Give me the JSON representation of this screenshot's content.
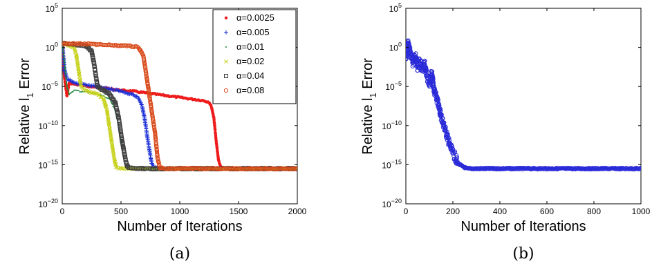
{
  "chart_data": [
    {
      "type": "scatter",
      "caption": "(a)",
      "xlabel": "Number of Iterations",
      "ylabel_base": "Relative l",
      "ylabel_sub": "1",
      "ylabel_tail": "Error",
      "xlim": [
        0,
        2000
      ],
      "ylim_log10": [
        -20,
        5
      ],
      "yscale": "log",
      "x_ticks": [
        "0",
        "500",
        "1000",
        "1500",
        "2000"
      ],
      "x_tick_values": [
        0,
        500,
        1000,
        1500,
        2000
      ],
      "y_ticks": [
        {
          "base": "10",
          "exp": "5",
          "value": 5
        },
        {
          "base": "10",
          "exp": "0",
          "value": 0
        },
        {
          "base": "10",
          "exp": "−5",
          "value": -5
        },
        {
          "base": "10",
          "exp": "−10",
          "value": -10
        },
        {
          "base": "10",
          "exp": "−15",
          "value": -15
        },
        {
          "base": "10",
          "exp": "−20",
          "value": -20
        }
      ],
      "legend_position": "top-right",
      "grid": false,
      "series": [
        {
          "name": "α=0.0025",
          "color": "#ee1c1c",
          "marker": "dot",
          "points_log10": [
            [
              0,
              0.5
            ],
            [
              20,
              -4
            ],
            [
              40,
              -6.2
            ],
            [
              60,
              -4.5
            ],
            [
              100,
              -4.7
            ],
            [
              200,
              -4.9
            ],
            [
              300,
              -5.1
            ],
            [
              400,
              -5.3
            ],
            [
              500,
              -5.5
            ],
            [
              600,
              -5.6
            ],
            [
              700,
              -5.8
            ],
            [
              800,
              -6.0
            ],
            [
              900,
              -6.2
            ],
            [
              1000,
              -6.4
            ],
            [
              1100,
              -6.6
            ],
            [
              1200,
              -6.8
            ],
            [
              1250,
              -7.0
            ],
            [
              1270,
              -7.6
            ],
            [
              1290,
              -9
            ],
            [
              1310,
              -12
            ],
            [
              1330,
              -14.5
            ],
            [
              1350,
              -15.3
            ],
            [
              1400,
              -15.5
            ],
            [
              1600,
              -15.5
            ],
            [
              1800,
              -15.5
            ],
            [
              2000,
              -15.5
            ]
          ]
        },
        {
          "name": "α=0.005",
          "color": "#1a2ed6",
          "marker": "plus",
          "points_log10": [
            [
              0,
              0.5
            ],
            [
              20,
              -3
            ],
            [
              40,
              -4
            ],
            [
              100,
              -4.5
            ],
            [
              200,
              -4.8
            ],
            [
              300,
              -5.0
            ],
            [
              400,
              -5.3
            ],
            [
              500,
              -5.6
            ],
            [
              600,
              -6.0
            ],
            [
              650,
              -6.5
            ],
            [
              680,
              -7.5
            ],
            [
              700,
              -9
            ],
            [
              720,
              -11
            ],
            [
              740,
              -13
            ],
            [
              760,
              -14.8
            ],
            [
              780,
              -15.4
            ],
            [
              850,
              -15.5
            ],
            [
              1000,
              -15.5
            ],
            [
              1500,
              -15.5
            ],
            [
              2000,
              -15.5
            ]
          ]
        },
        {
          "name": "α=0.01",
          "color": "#1e8a3a",
          "marker": "point",
          "points_log10": [
            [
              0,
              0.5
            ],
            [
              20,
              -2
            ],
            [
              40,
              -5
            ],
            [
              60,
              -6
            ],
            [
              100,
              -5.5
            ],
            [
              200,
              -5.7
            ],
            [
              300,
              -6.0
            ],
            [
              400,
              -6.5
            ],
            [
              450,
              -8
            ],
            [
              480,
              -10
            ],
            [
              500,
              -12
            ],
            [
              520,
              -14
            ],
            [
              540,
              -15.2
            ],
            [
              600,
              -15.5
            ],
            [
              1000,
              -15.5
            ],
            [
              1500,
              -15.5
            ],
            [
              2000,
              -15.5
            ]
          ]
        },
        {
          "name": "α=0.02",
          "color": "#c8d21e",
          "marker": "cross",
          "points_log10": [
            [
              0,
              0.5
            ],
            [
              50,
              0.3
            ],
            [
              100,
              0
            ],
            [
              120,
              -1
            ],
            [
              140,
              -3
            ],
            [
              160,
              -5
            ],
            [
              200,
              -5.5
            ],
            [
              300,
              -6.0
            ],
            [
              350,
              -6.5
            ],
            [
              380,
              -8
            ],
            [
              410,
              -11
            ],
            [
              440,
              -14
            ],
            [
              460,
              -15.4
            ],
            [
              500,
              -15.5
            ],
            [
              1000,
              -15.5
            ],
            [
              1500,
              -15.5
            ],
            [
              2000,
              -15.5
            ]
          ]
        },
        {
          "name": "α=0.04",
          "color": "#404040",
          "marker": "square",
          "points_log10": [
            [
              0,
              0.5
            ],
            [
              100,
              0.4
            ],
            [
              200,
              0.2
            ],
            [
              250,
              -0.5
            ],
            [
              270,
              -2
            ],
            [
              290,
              -4
            ],
            [
              300,
              -5
            ],
            [
              350,
              -5.5
            ],
            [
              400,
              -6.0
            ],
            [
              450,
              -7
            ],
            [
              480,
              -9
            ],
            [
              510,
              -12
            ],
            [
              540,
              -14.5
            ],
            [
              560,
              -15.4
            ],
            [
              600,
              -15.5
            ],
            [
              1000,
              -15.5
            ],
            [
              1500,
              -15.5
            ],
            [
              2000,
              -15.5
            ]
          ]
        },
        {
          "name": "α=0.08",
          "color": "#d94a1a",
          "marker": "circle",
          "points_log10": [
            [
              0,
              0.5
            ],
            [
              200,
              0.45
            ],
            [
              400,
              0.3
            ],
            [
              550,
              0.2
            ],
            [
              650,
              0
            ],
            [
              690,
              -1
            ],
            [
              710,
              -3
            ],
            [
              730,
              -5
            ],
            [
              760,
              -8
            ],
            [
              790,
              -11
            ],
            [
              810,
              -14
            ],
            [
              830,
              -15.4
            ],
            [
              900,
              -15.5
            ],
            [
              1000,
              -15.5
            ],
            [
              1500,
              -15.5
            ],
            [
              2000,
              -15.5
            ]
          ]
        }
      ]
    },
    {
      "type": "scatter",
      "caption": "(b)",
      "xlabel": "Number of Iterations",
      "ylabel_base": "Relative l",
      "ylabel_sub": "1",
      "ylabel_tail": "Error",
      "xlim": [
        0,
        1000
      ],
      "ylim_log10": [
        -20,
        5
      ],
      "yscale": "log",
      "x_ticks": [
        "0",
        "200",
        "400",
        "600",
        "800",
        "1000"
      ],
      "x_tick_values": [
        0,
        200,
        400,
        600,
        800,
        1000
      ],
      "y_ticks": [
        {
          "base": "10",
          "exp": "5",
          "value": 5
        },
        {
          "base": "10",
          "exp": "0",
          "value": 0
        },
        {
          "base": "10",
          "exp": "−5",
          "value": -5
        },
        {
          "base": "10",
          "exp": "−10",
          "value": -10
        },
        {
          "base": "10",
          "exp": "−15",
          "value": -15
        },
        {
          "base": "10",
          "exp": "−20",
          "value": -20
        }
      ],
      "grid": false,
      "series": [
        {
          "color": "#2b2bd8",
          "marker": "circle",
          "points_log10": [
            [
              0,
              -1.5
            ],
            [
              10,
              0.5
            ],
            [
              20,
              -0.8
            ],
            [
              30,
              -2
            ],
            [
              40,
              -1
            ],
            [
              50,
              -2.5
            ],
            [
              60,
              -1.8
            ],
            [
              70,
              -3
            ],
            [
              80,
              -2.2
            ],
            [
              90,
              -3.8
            ],
            [
              100,
              -4.5
            ],
            [
              110,
              -3.2
            ],
            [
              120,
              -5.5
            ],
            [
              130,
              -6.5
            ],
            [
              140,
              -7.5
            ],
            [
              150,
              -8.8
            ],
            [
              160,
              -9.8
            ],
            [
              170,
              -10.8
            ],
            [
              180,
              -11.8
            ],
            [
              190,
              -12.8
            ],
            [
              200,
              -13.5
            ],
            [
              210,
              -14
            ],
            [
              220,
              -14.8
            ],
            [
              240,
              -15.2
            ],
            [
              260,
              -15.5
            ],
            [
              300,
              -15.5
            ],
            [
              400,
              -15.5
            ],
            [
              500,
              -15.5
            ],
            [
              600,
              -15.5
            ],
            [
              700,
              -15.5
            ],
            [
              800,
              -15.5
            ],
            [
              900,
              -15.5
            ],
            [
              1000,
              -15.5
            ]
          ]
        }
      ]
    }
  ]
}
